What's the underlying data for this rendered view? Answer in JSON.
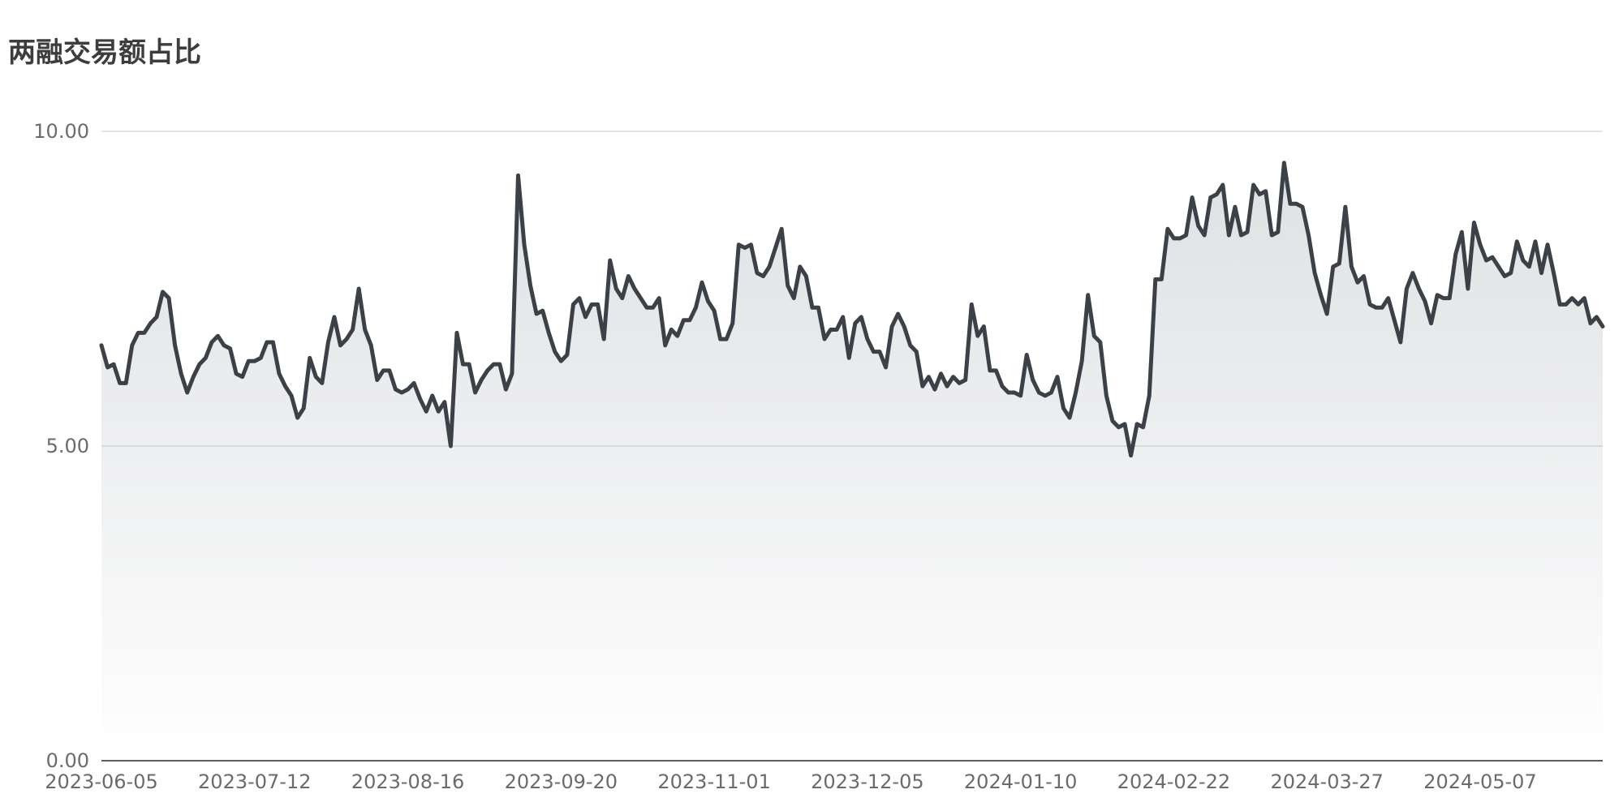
{
  "chart_data": {
    "type": "area",
    "title": "两融交易额占比",
    "xlabel": "",
    "ylabel": "",
    "ylim": [
      0,
      10
    ],
    "yticks": [
      "0.00",
      "5.00",
      "10.00"
    ],
    "grid": true,
    "legend": "none",
    "line_color": "#3c4148",
    "fill_color": "#7d848d",
    "x_tick_labels": [
      "2023-06-05",
      "2023-07-12",
      "2023-08-16",
      "2023-09-20",
      "2023-11-01",
      "2023-12-05",
      "2024-01-10",
      "2024-02-22",
      "2024-03-27",
      "2024-05-07"
    ],
    "x_tick_indices": [
      0,
      25,
      50,
      75,
      100,
      125,
      150,
      175,
      200,
      225
    ],
    "series": [
      {
        "name": "",
        "values": [
          6.6,
          6.25,
          6.3,
          6.0,
          6.0,
          6.6,
          6.8,
          6.8,
          6.95,
          7.05,
          7.45,
          7.35,
          6.6,
          6.15,
          5.85,
          6.1,
          6.3,
          6.4,
          6.65,
          6.75,
          6.6,
          6.55,
          6.15,
          6.1,
          6.35,
          6.35,
          6.4,
          6.65,
          6.65,
          6.15,
          5.95,
          5.8,
          5.45,
          5.6,
          6.4,
          6.1,
          6.0,
          6.65,
          7.05,
          6.6,
          6.7,
          6.85,
          7.5,
          6.85,
          6.6,
          6.05,
          6.2,
          6.2,
          5.9,
          5.85,
          5.9,
          6.0,
          5.75,
          5.55,
          5.8,
          5.55,
          5.7,
          5.0,
          6.8,
          6.3,
          6.3,
          5.85,
          6.05,
          6.2,
          6.3,
          6.3,
          5.9,
          6.15,
          9.3,
          8.2,
          7.55,
          7.1,
          7.15,
          6.8,
          6.5,
          6.35,
          6.45,
          7.25,
          7.35,
          7.05,
          7.25,
          7.25,
          6.7,
          7.95,
          7.5,
          7.35,
          7.7,
          7.5,
          7.35,
          7.2,
          7.2,
          7.35,
          6.6,
          6.85,
          6.75,
          7.0,
          7.0,
          7.2,
          7.6,
          7.3,
          7.15,
          6.7,
          6.7,
          6.95,
          8.2,
          8.15,
          8.2,
          7.75,
          7.7,
          7.85,
          8.15,
          8.45,
          7.55,
          7.35,
          7.85,
          7.7,
          7.2,
          7.2,
          6.7,
          6.85,
          6.85,
          7.05,
          6.4,
          6.95,
          7.05,
          6.7,
          6.5,
          6.5,
          6.25,
          6.9,
          7.1,
          6.9,
          6.6,
          6.5,
          5.95,
          6.1,
          5.9,
          6.15,
          5.95,
          6.1,
          6.0,
          6.05,
          7.25,
          6.75,
          6.9,
          6.2,
          6.2,
          5.95,
          5.85,
          5.85,
          5.8,
          6.45,
          6.05,
          5.85,
          5.8,
          5.85,
          6.1,
          5.6,
          5.45,
          5.85,
          6.35,
          7.4,
          6.75,
          6.65,
          5.8,
          5.4,
          5.3,
          5.35,
          4.85,
          5.35,
          5.3,
          5.8,
          7.65,
          7.65,
          8.45,
          8.3,
          8.3,
          8.35,
          8.95,
          8.5,
          8.35,
          8.95,
          9.0,
          9.15,
          8.35,
          8.8,
          8.35,
          8.4,
          9.15,
          9.0,
          9.05,
          8.35,
          8.4,
          9.5,
          8.85,
          8.85,
          8.8,
          8.35,
          7.75,
          7.4,
          7.1,
          7.85,
          7.9,
          8.8,
          7.85,
          7.6,
          7.7,
          7.25,
          7.2,
          7.2,
          7.35,
          7.0,
          6.65,
          7.5,
          7.75,
          7.5,
          7.3,
          6.95,
          7.4,
          7.35,
          7.35,
          8.05,
          8.4,
          7.5,
          8.55,
          8.2,
          7.95,
          8.0,
          7.85,
          7.7,
          7.75,
          8.25,
          7.95,
          7.85,
          8.25,
          7.75,
          8.2,
          7.75,
          7.25,
          7.25,
          7.35,
          7.25,
          7.35,
          6.95,
          7.05,
          6.9
        ]
      }
    ]
  }
}
